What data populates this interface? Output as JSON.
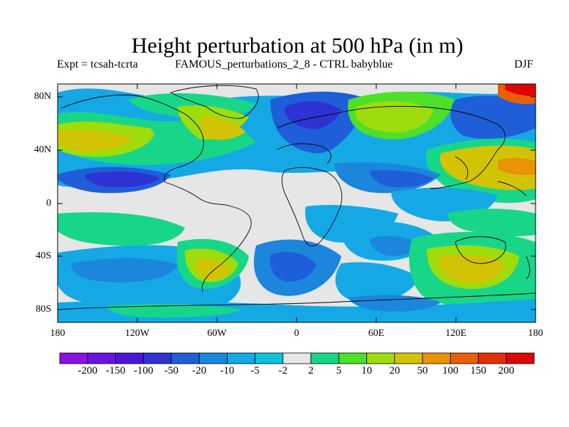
{
  "title": "Height perturbation at 500 hPa (in m)",
  "left_subtitle": "Expt = tcsah-tcrta",
  "center_subtitle": "FAMOUS_perturbations_2_8 - CTRL babyblue",
  "right_subtitle": "DJF",
  "lat_labels": [
    "80N",
    "40N",
    "0",
    "40S",
    "80S"
  ],
  "lon_labels": [
    "180",
    "120W",
    "60W",
    "0",
    "60E",
    "120E",
    "180"
  ],
  "colorbar": {
    "labels": [
      "-200",
      "-150",
      "-100",
      "-50",
      "-20",
      "-10",
      "-5",
      "-2",
      "2",
      "5",
      "10",
      "20",
      "50",
      "100",
      "150",
      "200"
    ],
    "colors": [
      "#8a12e2",
      "#6a12e0",
      "#4b14d8",
      "#2f32d2",
      "#1e5ed8",
      "#1b86dc",
      "#14a9e4",
      "#10c0dc",
      "#e6e6e6",
      "#18d688",
      "#4ee028",
      "#9fdc0c",
      "#d2c404",
      "#e89406",
      "#e86006",
      "#e23008",
      "#dc0606"
    ]
  },
  "legend_colors": {
    "neutral": "#e6e6e6",
    "coast": "#000000"
  }
}
